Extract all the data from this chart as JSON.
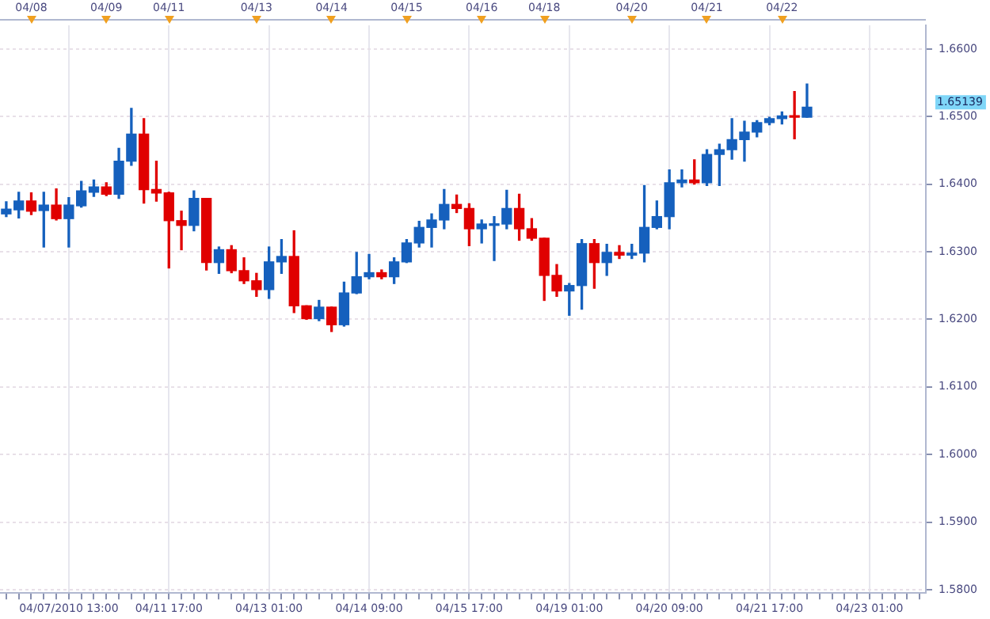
{
  "chart_data": {
    "type": "candlestick",
    "categories": [
      null,
      null,
      null,
      null,
      null,
      "04/07/2010 13:00",
      null,
      null,
      null,
      null,
      null,
      null,
      null,
      "04/11 17:00",
      null,
      null,
      null,
      null,
      null,
      null,
      null,
      "04/13 01:00",
      null,
      null,
      null,
      null,
      null,
      null,
      null,
      "04/14 09:00",
      null,
      null,
      null,
      null,
      null,
      null,
      null,
      "04/15 17:00",
      null,
      null,
      null,
      null,
      null,
      null,
      null,
      "04/19 01:00",
      null,
      null,
      null,
      null,
      null,
      null,
      null,
      "04/20 09:00",
      null,
      null,
      null,
      null,
      null,
      null,
      null,
      "04/21 17:00",
      null,
      null,
      null,
      null,
      null,
      null,
      null,
      "04/23 01:00",
      null,
      null,
      null,
      null
    ],
    "ohlc": [
      [
        1.6356,
        1.6374,
        1.6352,
        1.6363
      ],
      [
        1.6362,
        1.6388,
        1.635,
        1.6375
      ],
      [
        1.6375,
        1.6387,
        1.6355,
        1.636
      ],
      [
        1.6361,
        1.6388,
        1.6307,
        1.6369
      ],
      [
        1.6369,
        1.6393,
        1.6347,
        1.6349
      ],
      [
        1.6349,
        1.638,
        1.6307,
        1.6369
      ],
      [
        1.6368,
        1.6404,
        1.6366,
        1.639
      ],
      [
        1.6388,
        1.6406,
        1.6382,
        1.6396
      ],
      [
        1.6396,
        1.6402,
        1.6383,
        1.6385
      ],
      [
        1.6385,
        1.6453,
        1.6379,
        1.6434
      ],
      [
        1.6434,
        1.6512,
        1.6428,
        1.6474
      ],
      [
        1.6474,
        1.6497,
        1.6372,
        1.6392
      ],
      [
        1.6392,
        1.6434,
        1.6375,
        1.6387
      ],
      [
        1.6387,
        1.6388,
        1.6276,
        1.6346
      ],
      [
        1.6346,
        1.636,
        1.6303,
        1.6339
      ],
      [
        1.6339,
        1.639,
        1.6331,
        1.6379
      ],
      [
        1.6379,
        1.6379,
        1.6273,
        1.6284
      ],
      [
        1.6284,
        1.6307,
        1.6268,
        1.6303
      ],
      [
        1.6303,
        1.6309,
        1.6269,
        1.6272
      ],
      [
        1.6272,
        1.6291,
        1.6253,
        1.6257
      ],
      [
        1.6257,
        1.6268,
        1.6234,
        1.6244
      ],
      [
        1.6244,
        1.6307,
        1.6231,
        1.6285
      ],
      [
        1.6285,
        1.6318,
        1.6268,
        1.6293
      ],
      [
        1.6293,
        1.6331,
        1.621,
        1.622
      ],
      [
        1.622,
        1.622,
        1.62,
        1.6201
      ],
      [
        1.6201,
        1.6228,
        1.6198,
        1.6218
      ],
      [
        1.6218,
        1.6218,
        1.6182,
        1.6192
      ],
      [
        1.6192,
        1.6255,
        1.619,
        1.6239
      ],
      [
        1.6239,
        1.6299,
        1.6238,
        1.6263
      ],
      [
        1.6263,
        1.6296,
        1.626,
        1.6269
      ],
      [
        1.6269,
        1.6273,
        1.626,
        1.6263
      ],
      [
        1.6263,
        1.6291,
        1.6253,
        1.6285
      ],
      [
        1.6285,
        1.6318,
        1.6284,
        1.6313
      ],
      [
        1.6313,
        1.6345,
        1.6307,
        1.6336
      ],
      [
        1.6336,
        1.6356,
        1.6307,
        1.6347
      ],
      [
        1.6347,
        1.6392,
        1.6334,
        1.637
      ],
      [
        1.637,
        1.6384,
        1.6358,
        1.6364
      ],
      [
        1.6364,
        1.6371,
        1.6309,
        1.6334
      ],
      [
        1.6334,
        1.6347,
        1.6313,
        1.6341
      ],
      [
        1.6339,
        1.6352,
        1.6287,
        1.6341
      ],
      [
        1.6341,
        1.6391,
        1.6334,
        1.6364
      ],
      [
        1.6364,
        1.6385,
        1.6317,
        1.6334
      ],
      [
        1.6334,
        1.6349,
        1.6317,
        1.632
      ],
      [
        1.632,
        1.632,
        1.6228,
        1.6265
      ],
      [
        1.6265,
        1.6281,
        1.6234,
        1.6242
      ],
      [
        1.6242,
        1.6253,
        1.6206,
        1.625
      ],
      [
        1.625,
        1.6318,
        1.6215,
        1.6312
      ],
      [
        1.6312,
        1.6318,
        1.6246,
        1.6284
      ],
      [
        1.6284,
        1.6311,
        1.6265,
        1.6299
      ],
      [
        1.6299,
        1.6309,
        1.629,
        1.6295
      ],
      [
        1.6295,
        1.6311,
        1.629,
        1.6298
      ],
      [
        1.6298,
        1.6398,
        1.6285,
        1.6336
      ],
      [
        1.6336,
        1.6375,
        1.6334,
        1.6352
      ],
      [
        1.6352,
        1.6421,
        1.6334,
        1.6402
      ],
      [
        1.6402,
        1.6421,
        1.6396,
        1.6406
      ],
      [
        1.6406,
        1.6436,
        1.64,
        1.6402
      ],
      [
        1.6402,
        1.6451,
        1.6398,
        1.6444
      ],
      [
        1.6444,
        1.6459,
        1.6398,
        1.6451
      ],
      [
        1.6451,
        1.6497,
        1.6437,
        1.6466
      ],
      [
        1.6466,
        1.6493,
        1.6434,
        1.6477
      ],
      [
        1.6477,
        1.6494,
        1.647,
        1.6491
      ],
      [
        1.6491,
        1.6499,
        1.6488,
        1.6497
      ],
      [
        1.6497,
        1.6507,
        1.6489,
        1.6501
      ],
      [
        1.6501,
        1.6537,
        1.6467,
        1.6499
      ],
      [
        1.6499,
        1.6548,
        1.6499,
        1.6514
      ],
      null,
      null,
      null,
      null,
      null,
      null,
      null,
      null,
      null
    ],
    "colors": [
      "#1560bd",
      "#1560bd",
      "#e00000",
      "#1560bd",
      "#e00000",
      "#1560bd",
      "#1560bd",
      "#1560bd",
      "#e00000",
      "#1560bd",
      "#1560bd",
      "#e00000",
      "#e00000",
      "#e00000",
      "#e00000",
      "#1560bd",
      "#e00000",
      "#1560bd",
      "#e00000",
      "#e00000",
      "#e00000",
      "#1560bd",
      "#1560bd",
      "#e00000",
      "#e00000",
      "#1560bd",
      "#e00000",
      "#1560bd",
      "#1560bd",
      "#1560bd",
      "#e00000",
      "#1560bd",
      "#1560bd",
      "#1560bd",
      "#1560bd",
      "#1560bd",
      "#e00000",
      "#e00000",
      "#1560bd",
      "#1560bd",
      "#1560bd",
      "#e00000",
      "#e00000",
      "#e00000",
      "#e00000",
      "#1560bd",
      "#1560bd",
      "#e00000",
      "#1560bd",
      "#e00000",
      "#1560bd",
      "#1560bd",
      "#1560bd",
      "#1560bd",
      "#1560bd",
      "#e00000",
      "#1560bd",
      "#1560bd",
      "#1560bd",
      "#1560bd",
      "#1560bd",
      "#1560bd",
      "#1560bd",
      "#e00000",
      "#1560bd",
      null,
      null,
      null,
      null,
      null,
      null,
      null,
      null,
      null
    ],
    "ylim": [
      1.5795,
      1.6635
    ],
    "yticks": [
      {
        "value": 1.58,
        "label": "1.5800"
      },
      {
        "value": 1.59,
        "label": "1.5900"
      },
      {
        "value": 1.6,
        "label": "1.6000"
      },
      {
        "value": 1.61,
        "label": "1.6100"
      },
      {
        "value": 1.62,
        "label": "1.6200"
      },
      {
        "value": 1.63,
        "label": "1.6300"
      },
      {
        "value": 1.64,
        "label": "1.6400"
      },
      {
        "value": 1.65,
        "label": "1.6500"
      },
      {
        "value": 1.66,
        "label": "1.6600"
      }
    ],
    "annotations": [
      "04/08",
      "04/09",
      "04/11",
      "04/13",
      "04/14",
      "04/15",
      "04/16",
      "04/18",
      "04/20",
      "04/21",
      "04/22",
      "1.65139"
    ],
    "grid": true
  }
}
